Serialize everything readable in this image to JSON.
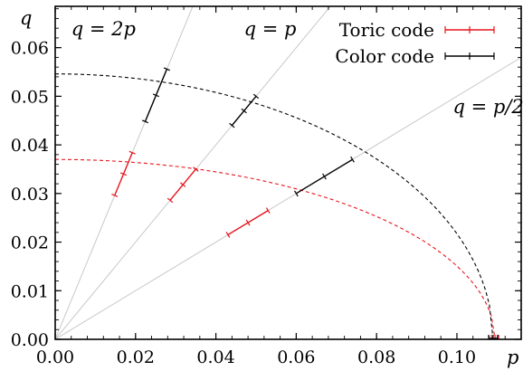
{
  "chart_data": {
    "type": "line",
    "xlabel": "p",
    "ylabel": "q",
    "xlim": [
      0,
      0.116
    ],
    "ylim": [
      0,
      0.0685
    ],
    "grid": false,
    "legend_position": "top-right",
    "x_ticks": [
      "0.00",
      "0.02",
      "0.04",
      "0.06",
      "0.08",
      "0.10"
    ],
    "x_tick_values": [
      0,
      0.02,
      0.04,
      0.06,
      0.08,
      0.1
    ],
    "y_ticks": [
      "0.00",
      "0.01",
      "0.02",
      "0.03",
      "0.04",
      "0.05",
      "0.06"
    ],
    "y_tick_values": [
      0,
      0.01,
      0.02,
      0.03,
      0.04,
      0.05,
      0.06
    ],
    "reference_lines": [
      {
        "slope": 2,
        "label": "q = 2p",
        "label_x": 0.004,
        "label_y": 0.0625
      },
      {
        "slope": 1,
        "label": "q = p",
        "label_x": 0.047,
        "label_y": 0.0625
      },
      {
        "slope": 0.5,
        "label": "q = p/2",
        "label_x": 0.099,
        "label_y": 0.0465
      }
    ],
    "series": [
      {
        "name": "Toric code",
        "color": "#e8141c",
        "fit_curve": {
          "q0": 0.037,
          "p0": 0.1095
        },
        "points": [
          {
            "p": 0.017,
            "q": 0.034,
            "perr": 0.0022
          },
          {
            "p": 0.0318,
            "q": 0.0318,
            "perr": 0.0032
          },
          {
            "p": 0.048,
            "q": 0.024,
            "perr": 0.005
          }
        ],
        "x_intercept": {
          "p": 0.1095,
          "perr": 0.0009
        }
      },
      {
        "name": "Color code",
        "color": "#000000",
        "fit_curve": {
          "q0": 0.0546,
          "p0": 0.109
        },
        "points": [
          {
            "p": 0.0251,
            "q": 0.0502,
            "perr": 0.0027
          },
          {
            "p": 0.047,
            "q": 0.047,
            "perr": 0.003
          },
          {
            "p": 0.067,
            "q": 0.0335,
            "perr": 0.007
          }
        ],
        "x_intercept": {
          "p": 0.109,
          "perr": 0.0011
        }
      }
    ]
  }
}
